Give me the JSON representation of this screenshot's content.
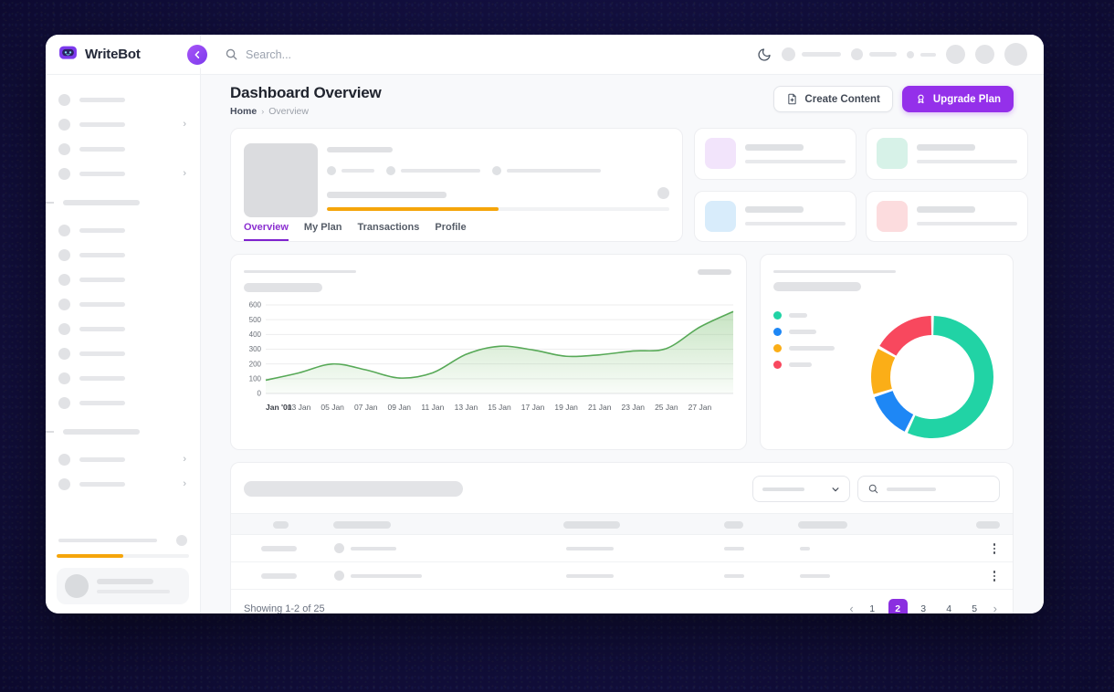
{
  "brand": {
    "name": "WriteBot"
  },
  "topbar": {
    "search_placeholder": "Search...",
    "icons": [
      "moon-dark-mode-toggle"
    ]
  },
  "page_header": {
    "title": "Dashboard Overview",
    "breadcrumb_home": "Home",
    "breadcrumb_sep": "›",
    "breadcrumb_current": "Overview",
    "create_button": "Create Content",
    "upgrade_button": "Upgrade Plan"
  },
  "profile_card": {
    "tabs": [
      {
        "label": "Overview",
        "active": true
      },
      {
        "label": "My Plan",
        "active": false
      },
      {
        "label": "Transactions",
        "active": false
      },
      {
        "label": "Profile",
        "active": false
      }
    ],
    "progress_percent": 50,
    "progress_color": "#F5A50A"
  },
  "stat_cards": [
    {
      "icon_color": "#F2E4FB"
    },
    {
      "icon_color": "#D7F2E8"
    },
    {
      "icon_color": "#D8ECFB"
    },
    {
      "icon_color": "#FCDCDE"
    }
  ],
  "sidebar": {
    "usage_percent": 50,
    "usage_color": "#F5A50A"
  },
  "chart_data": [
    {
      "type": "area",
      "title": "",
      "x": [
        "Jan '01",
        "03 Jan",
        "05 Jan",
        "07 Jan",
        "09 Jan",
        "11 Jan",
        "13 Jan",
        "15 Jan",
        "17 Jan",
        "19 Jan",
        "21 Jan",
        "23 Jan",
        "25 Jan",
        "27 Jan",
        ""
      ],
      "values": [
        90,
        140,
        200,
        160,
        105,
        140,
        265,
        320,
        295,
        252,
        262,
        288,
        305,
        450,
        555
      ],
      "ylim": [
        0,
        600
      ],
      "yticks": [
        0,
        100,
        200,
        300,
        400,
        500,
        600
      ],
      "grid": true,
      "line_color": "#57a957",
      "fill_from": "rgba(120,190,110,0.42)",
      "fill_to": "rgba(120,190,110,0.04)"
    },
    {
      "type": "donut",
      "legend_position": "left",
      "segments": [
        {
          "name": "segment-1",
          "value": 57,
          "color": "#21D3A5"
        },
        {
          "name": "segment-2",
          "value": 13,
          "color": "#1E87F5"
        },
        {
          "name": "segment-3",
          "value": 13,
          "color": "#FBAE17"
        },
        {
          "name": "segment-4",
          "value": 17,
          "color": "#F8485E"
        }
      ]
    }
  ],
  "table": {
    "showing_text": "Showing 1-2 of 25",
    "pagination": {
      "prev": "‹",
      "pages": [
        "1",
        "2",
        "3",
        "4",
        "5"
      ],
      "active_page": "2",
      "next": "›"
    }
  },
  "theme": {
    "accent": "#9430EA",
    "content_bg": "#F8F9FB",
    "dark_backdrop": "#131040"
  }
}
